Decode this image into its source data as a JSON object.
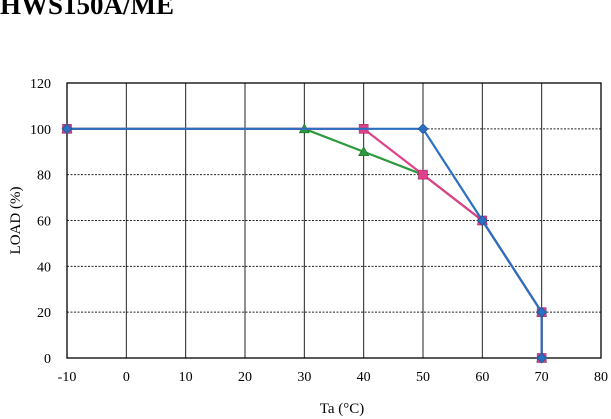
{
  "chart_data": {
    "type": "line",
    "title": "HWS150A/ME",
    "xlabel": "Ta (°C)",
    "ylabel": "LOAD (%)",
    "xlim": [
      -10,
      80
    ],
    "ylim": [
      0,
      120
    ],
    "xticks": [
      -10,
      0,
      10,
      20,
      30,
      40,
      50,
      60,
      70,
      80
    ],
    "yticks": [
      0,
      20,
      40,
      60,
      80,
      100,
      120
    ],
    "xtick_labels": [
      "-10",
      "0",
      "10",
      "20",
      "30",
      "40",
      "50",
      "60",
      "70",
      "80"
    ],
    "ytick_labels": [
      "0",
      "20",
      "40",
      "60",
      "80",
      "100",
      "120"
    ],
    "grid": true,
    "series": [
      {
        "color": "#2e9a3e",
        "marker": "triangle",
        "x": [
          -10,
          30,
          40,
          50,
          60,
          70,
          70
        ],
        "y": [
          100,
          100,
          90,
          80,
          60,
          20,
          0
        ]
      },
      {
        "color": "#e0408a",
        "marker": "square",
        "x": [
          -10,
          40,
          50,
          60,
          70,
          70
        ],
        "y": [
          100,
          100,
          80,
          60,
          20,
          0
        ]
      },
      {
        "color": "#2a6fc0",
        "marker": "diamond",
        "x": [
          -10,
          50,
          60,
          70,
          70
        ],
        "y": [
          100,
          100,
          60,
          20,
          0
        ]
      }
    ]
  }
}
